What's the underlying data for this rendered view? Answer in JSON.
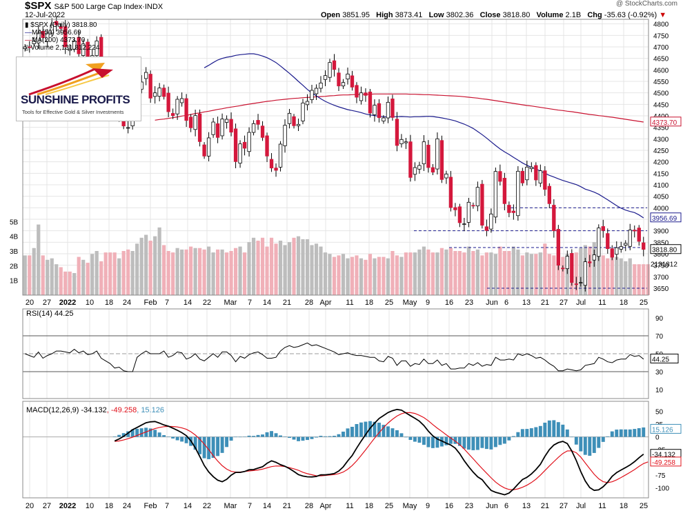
{
  "header": {
    "symbol": "$SPX",
    "name": "S&P 500 Large Cap Index",
    "exchange": "INDX",
    "date": "12-Jul-2022",
    "open_label": "Open",
    "open": "3851.95",
    "high_label": "High",
    "high": "3873.41",
    "low_label": "Low",
    "low": "3802.36",
    "close_label": "Close",
    "close": "3818.80",
    "volume_label": "Volume",
    "volume": "2.1B",
    "chg_label": "Chg",
    "chg": "-35.63 (-0.92%)",
    "watermark": "@ StockCharts.com"
  },
  "legend": {
    "price": "$SPX (Daily) 3818.80",
    "ma50": "MA(50) 3956.69",
    "ma200": "MA(200) 4373.70",
    "volume": "Volume 2,131,812,224"
  },
  "logo": {
    "name": "SUNSHINE PROFITS",
    "tagline": "Tools for Effective Gold & Silver Investments"
  },
  "colors": {
    "up": "#ffffff",
    "down": "#d4183c",
    "ma50": "#1a1a8c",
    "ma200": "#c8102e",
    "vol_up": "#bdbdbd",
    "vol_down": "#f0b0b8",
    "hist": "#3e8fb8",
    "macd": "#000000",
    "signal": "#e0101a",
    "grid": "#e4e4e4"
  },
  "chart_data": [
    {
      "type": "candlestick",
      "title": "$SPX (Daily) 3818.80",
      "y_ticks": [
        3650,
        3700,
        3750,
        3800,
        3850,
        3900,
        3950,
        4000,
        4050,
        4100,
        4150,
        4200,
        4250,
        4300,
        4350,
        4400,
        4450,
        4500,
        4550,
        4600,
        4650,
        4700,
        4750,
        4800
      ],
      "ylim": [
        3620,
        4820
      ],
      "x_ticks": [
        "20",
        "27",
        "2022",
        "10",
        "18",
        "24",
        "Feb",
        "7",
        "14",
        "22",
        "Mar",
        "7",
        "14",
        "21",
        "28",
        "Apr",
        "11",
        "18",
        "25",
        "May",
        "9",
        "16",
        "23",
        "Jun",
        "6",
        "13",
        "21",
        "27",
        "Jul",
        "11",
        "18",
        "25"
      ],
      "value_labels": {
        "ma200": "4373.70",
        "ma50": "3956.69",
        "close": "3818.80"
      },
      "levels": [
        3650,
        3827,
        3900,
        4000
      ],
      "closes": [
        4700,
        4698,
        4725,
        4760,
        4740,
        4760,
        4795,
        4796,
        4780,
        4700,
        4690,
        4726,
        4670,
        4713,
        4659,
        4662,
        4726,
        4577,
        4532,
        4482,
        4397,
        4410,
        4356,
        4349,
        4432,
        4516,
        4547,
        4589,
        4477,
        4500,
        4521,
        4484,
        4418,
        4401,
        4472,
        4475,
        4380,
        4348,
        4401,
        4288,
        4225,
        4304,
        4373,
        4306,
        4386,
        4385,
        4329,
        4201,
        4278,
        4259,
        4328,
        4366,
        4363,
        4306,
        4225,
        4173,
        4163,
        4277,
        4359,
        4411,
        4357,
        4363,
        4456,
        4463,
        4511,
        4520,
        4543,
        4575,
        4632,
        4602,
        4530,
        4545,
        4582,
        4525,
        4481,
        4500,
        4489,
        4412,
        4446,
        4392,
        4391,
        4459,
        4393,
        4271,
        4297,
        4287,
        4132,
        4175,
        4184,
        4287,
        4175,
        4155,
        4300,
        4123,
        4147,
        4001,
        3991,
        3935,
        3930,
        4024,
        4008,
        4089,
        3924,
        3901,
        3973,
        4158,
        4115,
        4018,
        3979,
        3979,
        4159,
        4108,
        4177,
        4177,
        4121,
        4161,
        4080,
        4018,
        3900,
        3750,
        3735,
        3789,
        3675,
        3667,
        3675,
        3765,
        3760,
        3795,
        3912,
        3901,
        3822,
        3785,
        3826,
        3831,
        3845,
        3903,
        3899,
        3854,
        3819
      ],
      "ma50": [
        4609,
        4620,
        4632,
        4643,
        4650,
        4655,
        4658,
        4663,
        4666,
        4668,
        4670,
        4670,
        4666,
        4660,
        4653,
        4643,
        4632,
        4617,
        4601,
        4585,
        4568,
        4550,
        4533,
        4515,
        4500,
        4487,
        4474,
        4463,
        4454,
        4446,
        4439,
        4433,
        4427,
        4423,
        4419,
        4414,
        4408,
        4404,
        4401,
        4398,
        4396,
        4395,
        4396,
        4396,
        4397,
        4396,
        4395,
        4396,
        4396,
        4397,
        4398,
        4397,
        4394,
        4391,
        4387,
        4383,
        4378,
        4371,
        4364,
        4355,
        4345,
        4332,
        4318,
        4303,
        4287,
        4271,
        4256,
        4243,
        4232,
        4219,
        4207,
        4195,
        4185,
        4176,
        4169,
        4160,
        4150,
        4141,
        4134,
        4126,
        4119,
        4113,
        4107,
        4101,
        4092,
        4081,
        4075,
        4068,
        4059,
        4047,
        4035,
        4022,
        4009,
        3998,
        3990,
        3984,
        3979,
        3969,
        3956
      ],
      "ma200": [
        4381,
        4384,
        4386,
        4389,
        4392,
        4395,
        4399,
        4402,
        4406,
        4410,
        4413,
        4417,
        4420,
        4424,
        4428,
        4431,
        4435,
        4438,
        4441,
        4444,
        4448,
        4451,
        4454,
        4457,
        4460,
        4463,
        4465,
        4468,
        4470,
        4472,
        4474,
        4476,
        4477,
        4479,
        4480,
        4481,
        4483,
        4484,
        4485,
        4487,
        4488,
        4490,
        4491,
        4491,
        4492,
        4493,
        4493,
        4494,
        4494,
        4495,
        4495,
        4495,
        4495,
        4495,
        4495,
        4495,
        4495,
        4494,
        4494,
        4493,
        4492,
        4492,
        4491,
        4490,
        4489,
        4488,
        4487,
        4486,
        4485,
        4483,
        4481,
        4479,
        4477,
        4474,
        4472,
        4469,
        4466,
        4463,
        4460,
        4457,
        4454,
        4451,
        4448,
        4445,
        4443,
        4440,
        4437,
        4434,
        4431,
        4428,
        4425,
        4423,
        4420,
        4418,
        4415,
        4412,
        4409,
        4406,
        4404,
        4401,
        4399,
        4396,
        4394,
        4391,
        4388,
        4385,
        4382,
        4379,
        4376,
        4373
      ]
    },
    {
      "type": "bar",
      "title": "Volume 2,131,812,224",
      "y_ticks": [
        "1B",
        "2B",
        "3B",
        "4B",
        "5B"
      ],
      "value_labels": {
        "last": "2131812"
      },
      "values": [
        2.7,
        2.7,
        3.2,
        4.8,
        2.7,
        2.4,
        2.5,
        2.1,
        1.9,
        1.6,
        1.6,
        1.5,
        2.6,
        2.4,
        2.2,
        2.8,
        3.0,
        2.3,
        2.9,
        2.9,
        2.9,
        2.5,
        3.0,
        3.1,
        3.0,
        3.5,
        3.9,
        4.1,
        3.7,
        4.0,
        4.6,
        3.4,
        3.0,
        2.9,
        3.2,
        3.1,
        3.1,
        3.3,
        3.2,
        3.2,
        3.1,
        3.3,
        2.9,
        3.1,
        3.1,
        2.9,
        3.0,
        3.2,
        3.3,
        2.9,
        3.6,
        3.9,
        3.7,
        3.9,
        3.3,
        3.9,
        3.5,
        3.7,
        3.4,
        3.6,
        3.9,
        4.0,
        3.8,
        3.8,
        3.4,
        3.5,
        3.3,
        2.9,
        2.8,
        2.6,
        2.7,
        2.8,
        2.5,
        2.6,
        2.7,
        2.5,
        2.4,
        2.8,
        2.5,
        2.6,
        2.6,
        2.5,
        3.0,
        2.7,
        2.6,
        2.9,
        2.9,
        2.9,
        3.1,
        3.3,
        3.1,
        2.9,
        2.9,
        3.2,
        3.1,
        3.2,
        3.0,
        3.0,
        2.9,
        3.3,
        3.0,
        3.1,
        2.7,
        2.9,
        2.9,
        2.8,
        3.3,
        3.0,
        3.0,
        3.3,
        3.1,
        2.7,
        2.9,
        2.8,
        2.8,
        2.9,
        3.5,
        2.8,
        2.7,
        2.6,
        2.6,
        2.8,
        2.7,
        2.9,
        3.2,
        3.4,
        3.3,
        3.6,
        3.2,
        2.7,
        2.5,
        2.7,
        2.6,
        2.5,
        2.3,
        2.5,
        2.1,
        2.1,
        2.1,
        2.1
      ]
    },
    {
      "type": "line",
      "title": "RSI(14) 44.25",
      "y_ticks": [
        10,
        30,
        50,
        70,
        90
      ],
      "ylim": [
        0,
        100
      ],
      "value_labels": {
        "last": "44.25"
      },
      "values": [
        50,
        48,
        46,
        52,
        45,
        48,
        50,
        53,
        53,
        52,
        51,
        55,
        51,
        53,
        49,
        50,
        53,
        45,
        42,
        39,
        34,
        35,
        31,
        30,
        30,
        46,
        50,
        53,
        50,
        50,
        50,
        53,
        46,
        48,
        52,
        51,
        44,
        46,
        50,
        44,
        42,
        46,
        50,
        46,
        52,
        52,
        48,
        41,
        47,
        45,
        49,
        51,
        52,
        49,
        45,
        45,
        46,
        53,
        57,
        59,
        57,
        58,
        60,
        62,
        59,
        60,
        58,
        56,
        54,
        52,
        49,
        50,
        51,
        49,
        48,
        48,
        47,
        46,
        46,
        42,
        41,
        47,
        45,
        37,
        42,
        42,
        36,
        39,
        38,
        44,
        39,
        39,
        43,
        37,
        39,
        33,
        33,
        34,
        34,
        39,
        37,
        40,
        36,
        38,
        37,
        46,
        43,
        43,
        44,
        43,
        50,
        48,
        50,
        48,
        45,
        46,
        43,
        39,
        36,
        31,
        31,
        33,
        32,
        31,
        32,
        37,
        38,
        39,
        46,
        44,
        41,
        40,
        43,
        44,
        44,
        49,
        47,
        48,
        44
      ]
    },
    {
      "type": "line",
      "title": "MACD(12,26,9) -34.132, -49.258, 15.126",
      "y_ticks": [
        -100,
        -75,
        -50,
        -25,
        0,
        25,
        50
      ],
      "ylim": [
        -120,
        70
      ],
      "value_labels": {
        "macd": "-34.132",
        "signal": "-49.258",
        "hist": "15.126"
      },
      "series": [
        {
          "name": "MACD",
          "values": [
            -8.2,
            -4.1,
            1.1,
            7.4,
            14.1,
            18.6,
            23.3,
            27.8,
            29.6,
            30.2,
            27.1,
            23.4,
            21.0,
            17.1,
            12.8,
            8.3,
            2.4,
            -7.6,
            -21.6,
            -38.7,
            -56.4,
            -69.1,
            -78.4,
            -85.3,
            -88.4,
            -83.6,
            -75.4,
            -69.9,
            -69.9,
            -68.1,
            -64.8,
            -64.3,
            -61.5,
            -58.8,
            -52.0,
            -47.1,
            -50.1,
            -54.7,
            -57.8,
            -62.5,
            -68.2,
            -74.2,
            -77.1,
            -78.6,
            -78.9,
            -77.9,
            -74.7,
            -74.8,
            -73.7,
            -72.2,
            -67.2,
            -59.0,
            -47.2,
            -36.7,
            -22.0,
            -8.3,
            4.4,
            17.1,
            27.1,
            36.2,
            42.0,
            47.9,
            51.6,
            54.0,
            52.6,
            47.0,
            41.8,
            36.6,
            30.9,
            22.3,
            11.3,
            2.0,
            -4.2,
            -8.2,
            -12.4,
            -16.0,
            -22.2,
            -33.1,
            -47.0,
            -58.8,
            -69.5,
            -78.6,
            -84.3,
            -95.4,
            -105.5,
            -109.2,
            -111.5,
            -114.0,
            -110.6,
            -102.6,
            -93.0,
            -84.0,
            -79.5,
            -72.9,
            -64.3,
            -53.9,
            -38.4,
            -25.1,
            -16.0,
            -11.3,
            -8.8,
            -13.2,
            -27.9,
            -46.5,
            -68.3,
            -86.7,
            -99.8,
            -105.4,
            -104.2,
            -98.1,
            -89.2,
            -77.6,
            -70.3,
            -65.2,
            -60.4,
            -55.2,
            -48.7,
            -41.0,
            -34.1
          ]
        },
        {
          "name": "Signal",
          "values": [
            -9.0,
            -8.0,
            -6.2,
            -3.5,
            -0.6,
            2.7,
            6.4,
            9.8,
            13.1,
            16.3,
            18.5,
            20.0,
            20.6,
            20.3,
            19.5,
            17.6,
            14.9,
            10.1,
            3.7,
            -4.5,
            -14.3,
            -25.2,
            -37.1,
            -47.6,
            -56.8,
            -63.6,
            -67.9,
            -69.4,
            -69.2,
            -68.2,
            -67.1,
            -66.2,
            -65.2,
            -63.5,
            -61.0,
            -58.5,
            -57.3,
            -57.5,
            -58.5,
            -60.5,
            -62.8,
            -65.7,
            -69.6,
            -72.5,
            -74.6,
            -76.6,
            -76.8,
            -75.9,
            -75.1,
            -74.3,
            -72.4,
            -69.3,
            -63.8,
            -56.5,
            -47.2,
            -36.6,
            -25.5,
            -13.9,
            -2.5,
            8.3,
            18.3,
            27.3,
            34.7,
            40.9,
            45.5,
            47.9,
            47.8,
            46.1,
            42.4,
            38.0,
            31.6,
            24.1,
            17.1,
            10.7,
            4.1,
            -2.2,
            -8.4,
            -15.3,
            -23.9,
            -33.7,
            -43.2,
            -52.9,
            -62.4,
            -71.6,
            -80.7,
            -89.1,
            -95.6,
            -100.6,
            -103.6,
            -104.1,
            -102.3,
            -99.3,
            -95.1,
            -89.9,
            -83.4,
            -75.3,
            -66.3,
            -57.3,
            -48.8,
            -40.3,
            -32.8,
            -27.7,
            -27.4,
            -31.3,
            -39.8,
            -51.3,
            -62.6,
            -73.7,
            -82.5,
            -88.2,
            -90.2,
            -88.4,
            -84.6,
            -79.9,
            -75.0,
            -69.8,
            -64.3,
            -58.1,
            -52.6,
            -49.3
          ]
        }
      ]
    }
  ]
}
